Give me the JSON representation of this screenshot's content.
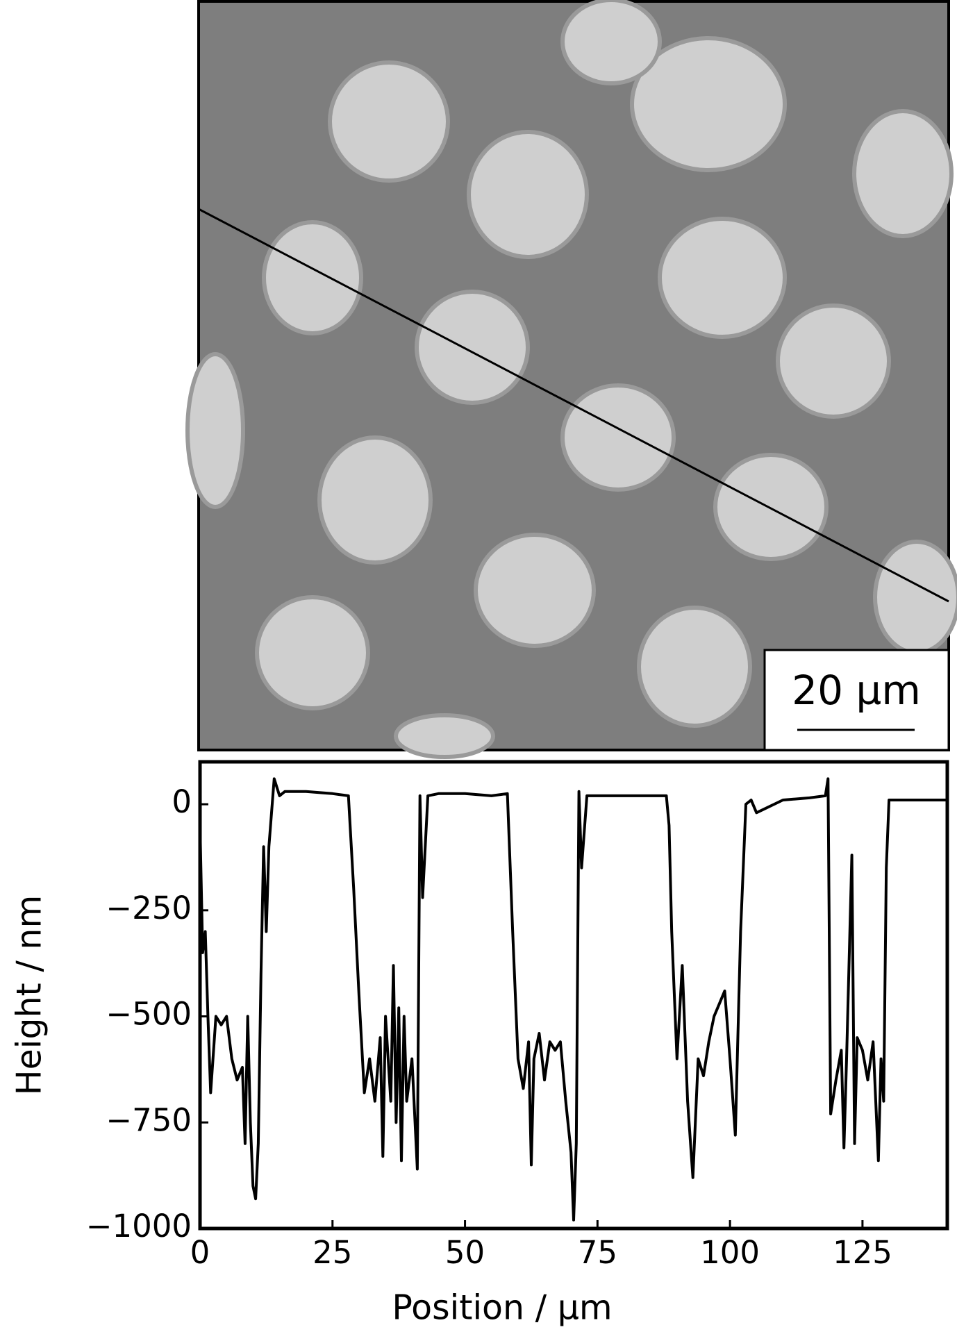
{
  "image": {
    "scale_bar": "20 µm"
  },
  "chart_data": {
    "type": "line",
    "xlabel": "Position / µm",
    "ylabel": "Height / nm",
    "xlim": [
      0,
      141
    ],
    "ylim": [
      -1000,
      100
    ],
    "xticks": [
      0,
      25,
      50,
      75,
      100,
      125
    ],
    "yticks": [
      {
        "value": -1000,
        "label": "−1000"
      },
      {
        "value": -750,
        "label": "−750"
      },
      {
        "value": -500,
        "label": "−500"
      },
      {
        "value": -250,
        "label": "−250"
      },
      0
    ],
    "series": [
      {
        "color": "#000000",
        "x": [
          0,
          0.5,
          1,
          1.5,
          2,
          3,
          4,
          5,
          6,
          7,
          8,
          8.5,
          9,
          9.5,
          10,
          10.5,
          11,
          11.5,
          12,
          12.5,
          13,
          14,
          15,
          16,
          20,
          25,
          28,
          29,
          30,
          31,
          32,
          33,
          34,
          34.5,
          35,
          36,
          36.5,
          37,
          37.5,
          38,
          38.5,
          39,
          40,
          41,
          41.5,
          42,
          43,
          45,
          50,
          55,
          58,
          59,
          60,
          61,
          62,
          62.5,
          63,
          64,
          65,
          66,
          67,
          68,
          69,
          70,
          70.5,
          71,
          71.5,
          72,
          73,
          80,
          85,
          88,
          88.5,
          89,
          90,
          91,
          92,
          93,
          94,
          95,
          96,
          97,
          98,
          99,
          100,
          101,
          102,
          103,
          104,
          105,
          110,
          115,
          118,
          118.5,
          119,
          120,
          121,
          121.5,
          122,
          123,
          123.5,
          124,
          125,
          126,
          127,
          128,
          128.5,
          129,
          129.5,
          130,
          135,
          141
        ],
        "values": [
          -50,
          -350,
          -300,
          -500,
          -680,
          -500,
          -520,
          -500,
          -600,
          -650,
          -620,
          -800,
          -500,
          -750,
          -900,
          -930,
          -800,
          -400,
          -100,
          -300,
          -100,
          60,
          20,
          30,
          30,
          25,
          20,
          -200,
          -450,
          -680,
          -600,
          -700,
          -550,
          -830,
          -500,
          -700,
          -380,
          -750,
          -480,
          -840,
          -500,
          -700,
          -600,
          -860,
          20,
          -220,
          20,
          25,
          25,
          20,
          25,
          -300,
          -600,
          -670,
          -560,
          -850,
          -600,
          -540,
          -650,
          -560,
          -580,
          -560,
          -700,
          -820,
          -980,
          -800,
          30,
          -150,
          20,
          20,
          20,
          20,
          -50,
          -300,
          -600,
          -380,
          -700,
          -880,
          -600,
          -640,
          -560,
          -500,
          -470,
          -440,
          -600,
          -780,
          -300,
          0,
          10,
          -20,
          10,
          15,
          20,
          60,
          -730,
          -650,
          -580,
          -810,
          -600,
          -120,
          -800,
          -550,
          -580,
          -650,
          -560,
          -840,
          -600,
          -700,
          -150,
          10,
          10,
          10
        ]
      }
    ]
  }
}
